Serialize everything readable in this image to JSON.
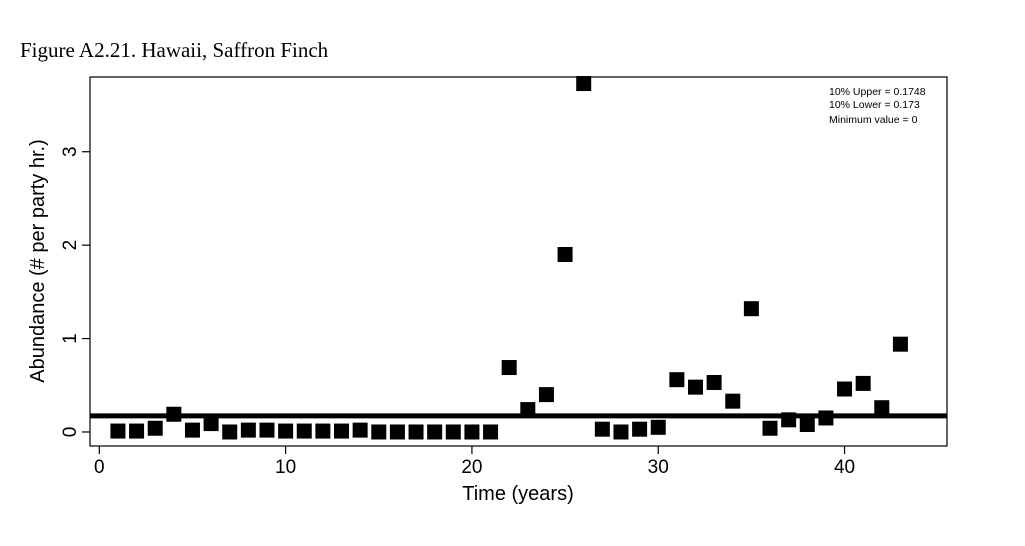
{
  "caption": "Figure A2.21. Hawaii, Saffron Finch",
  "chart_data": {
    "type": "scatter",
    "title": "",
    "xlabel": "Time (years)",
    "ylabel": "Abundance (# per party hr.)",
    "xlim": [
      -0.5,
      45.5
    ],
    "ylim": [
      -0.15,
      3.8
    ],
    "xticks": [
      0,
      10,
      20,
      30,
      40
    ],
    "yticks": [
      0,
      1,
      2,
      3
    ],
    "x": [
      1,
      2,
      3,
      4,
      5,
      6,
      7,
      8,
      9,
      10,
      11,
      12,
      13,
      14,
      15,
      16,
      17,
      18,
      19,
      20,
      21,
      22,
      23,
      24,
      25,
      26,
      27,
      28,
      29,
      30,
      31,
      32,
      33,
      34,
      35,
      36,
      37,
      38,
      39,
      40,
      41,
      42,
      43
    ],
    "y": [
      0.01,
      0.01,
      0.04,
      0.19,
      0.02,
      0.09,
      0.0,
      0.02,
      0.02,
      0.01,
      0.01,
      0.01,
      0.01,
      0.02,
      0.0,
      0.0,
      0.0,
      0.0,
      0.0,
      0.0,
      0.0,
      0.69,
      0.24,
      0.4,
      1.9,
      3.73,
      0.03,
      0.0,
      0.03,
      0.05,
      0.56,
      0.48,
      0.53,
      0.33,
      1.32,
      0.04,
      0.13,
      0.08,
      0.15,
      0.46,
      0.52,
      0.26,
      0.94
    ],
    "reference_line": 0.173,
    "annotations": [
      "10% Upper =  0.1748",
      "10% Lower =  0.173",
      "Minimum value =  0"
    ],
    "grid": false
  }
}
